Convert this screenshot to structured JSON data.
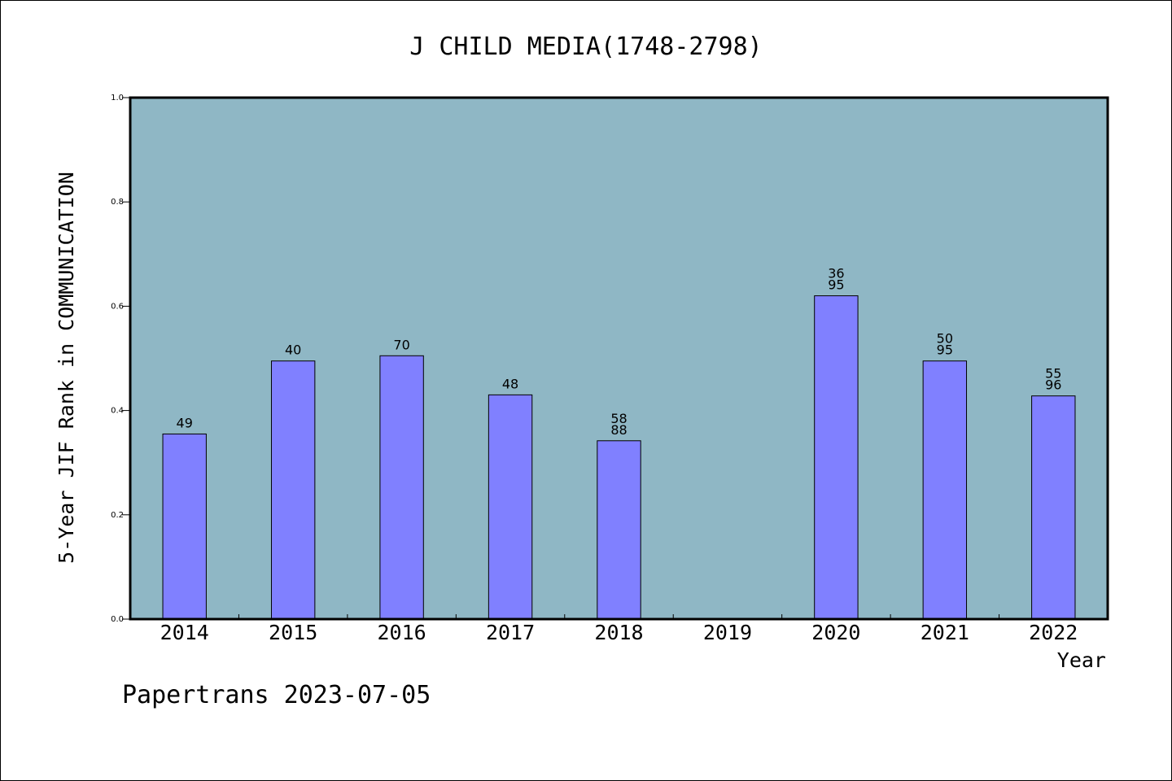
{
  "chart_data": {
    "type": "bar",
    "title": "J CHILD MEDIA(1748-2798)",
    "xlabel": "Year",
    "ylabel": "5-Year JIF Rank in COMMUNICATION",
    "ylim": [
      0,
      1.0
    ],
    "yticks": [
      "0.0",
      "0.2",
      "0.4",
      "0.6",
      "0.8",
      "1.0"
    ],
    "categories": [
      "2014",
      "2015",
      "2016",
      "2017",
      "2018",
      "2019",
      "2020",
      "2021",
      "2022"
    ],
    "values": [
      0.355,
      0.495,
      0.505,
      0.43,
      0.342,
      null,
      0.62,
      0.495,
      0.428
    ],
    "labels": [
      [
        "49"
      ],
      [
        "40"
      ],
      [
        "70"
      ],
      [
        "48"
      ],
      [
        "58",
        "88"
      ],
      [],
      [
        "36",
        "95"
      ],
      [
        "50",
        "95"
      ],
      [
        "55",
        "96"
      ]
    ],
    "colors": {
      "plot_background": "#8fb7c5",
      "bar_fill": "#8080ff"
    },
    "grid": false,
    "legend": "none"
  },
  "footer": {
    "text": "Papertrans 2023-07-05"
  }
}
